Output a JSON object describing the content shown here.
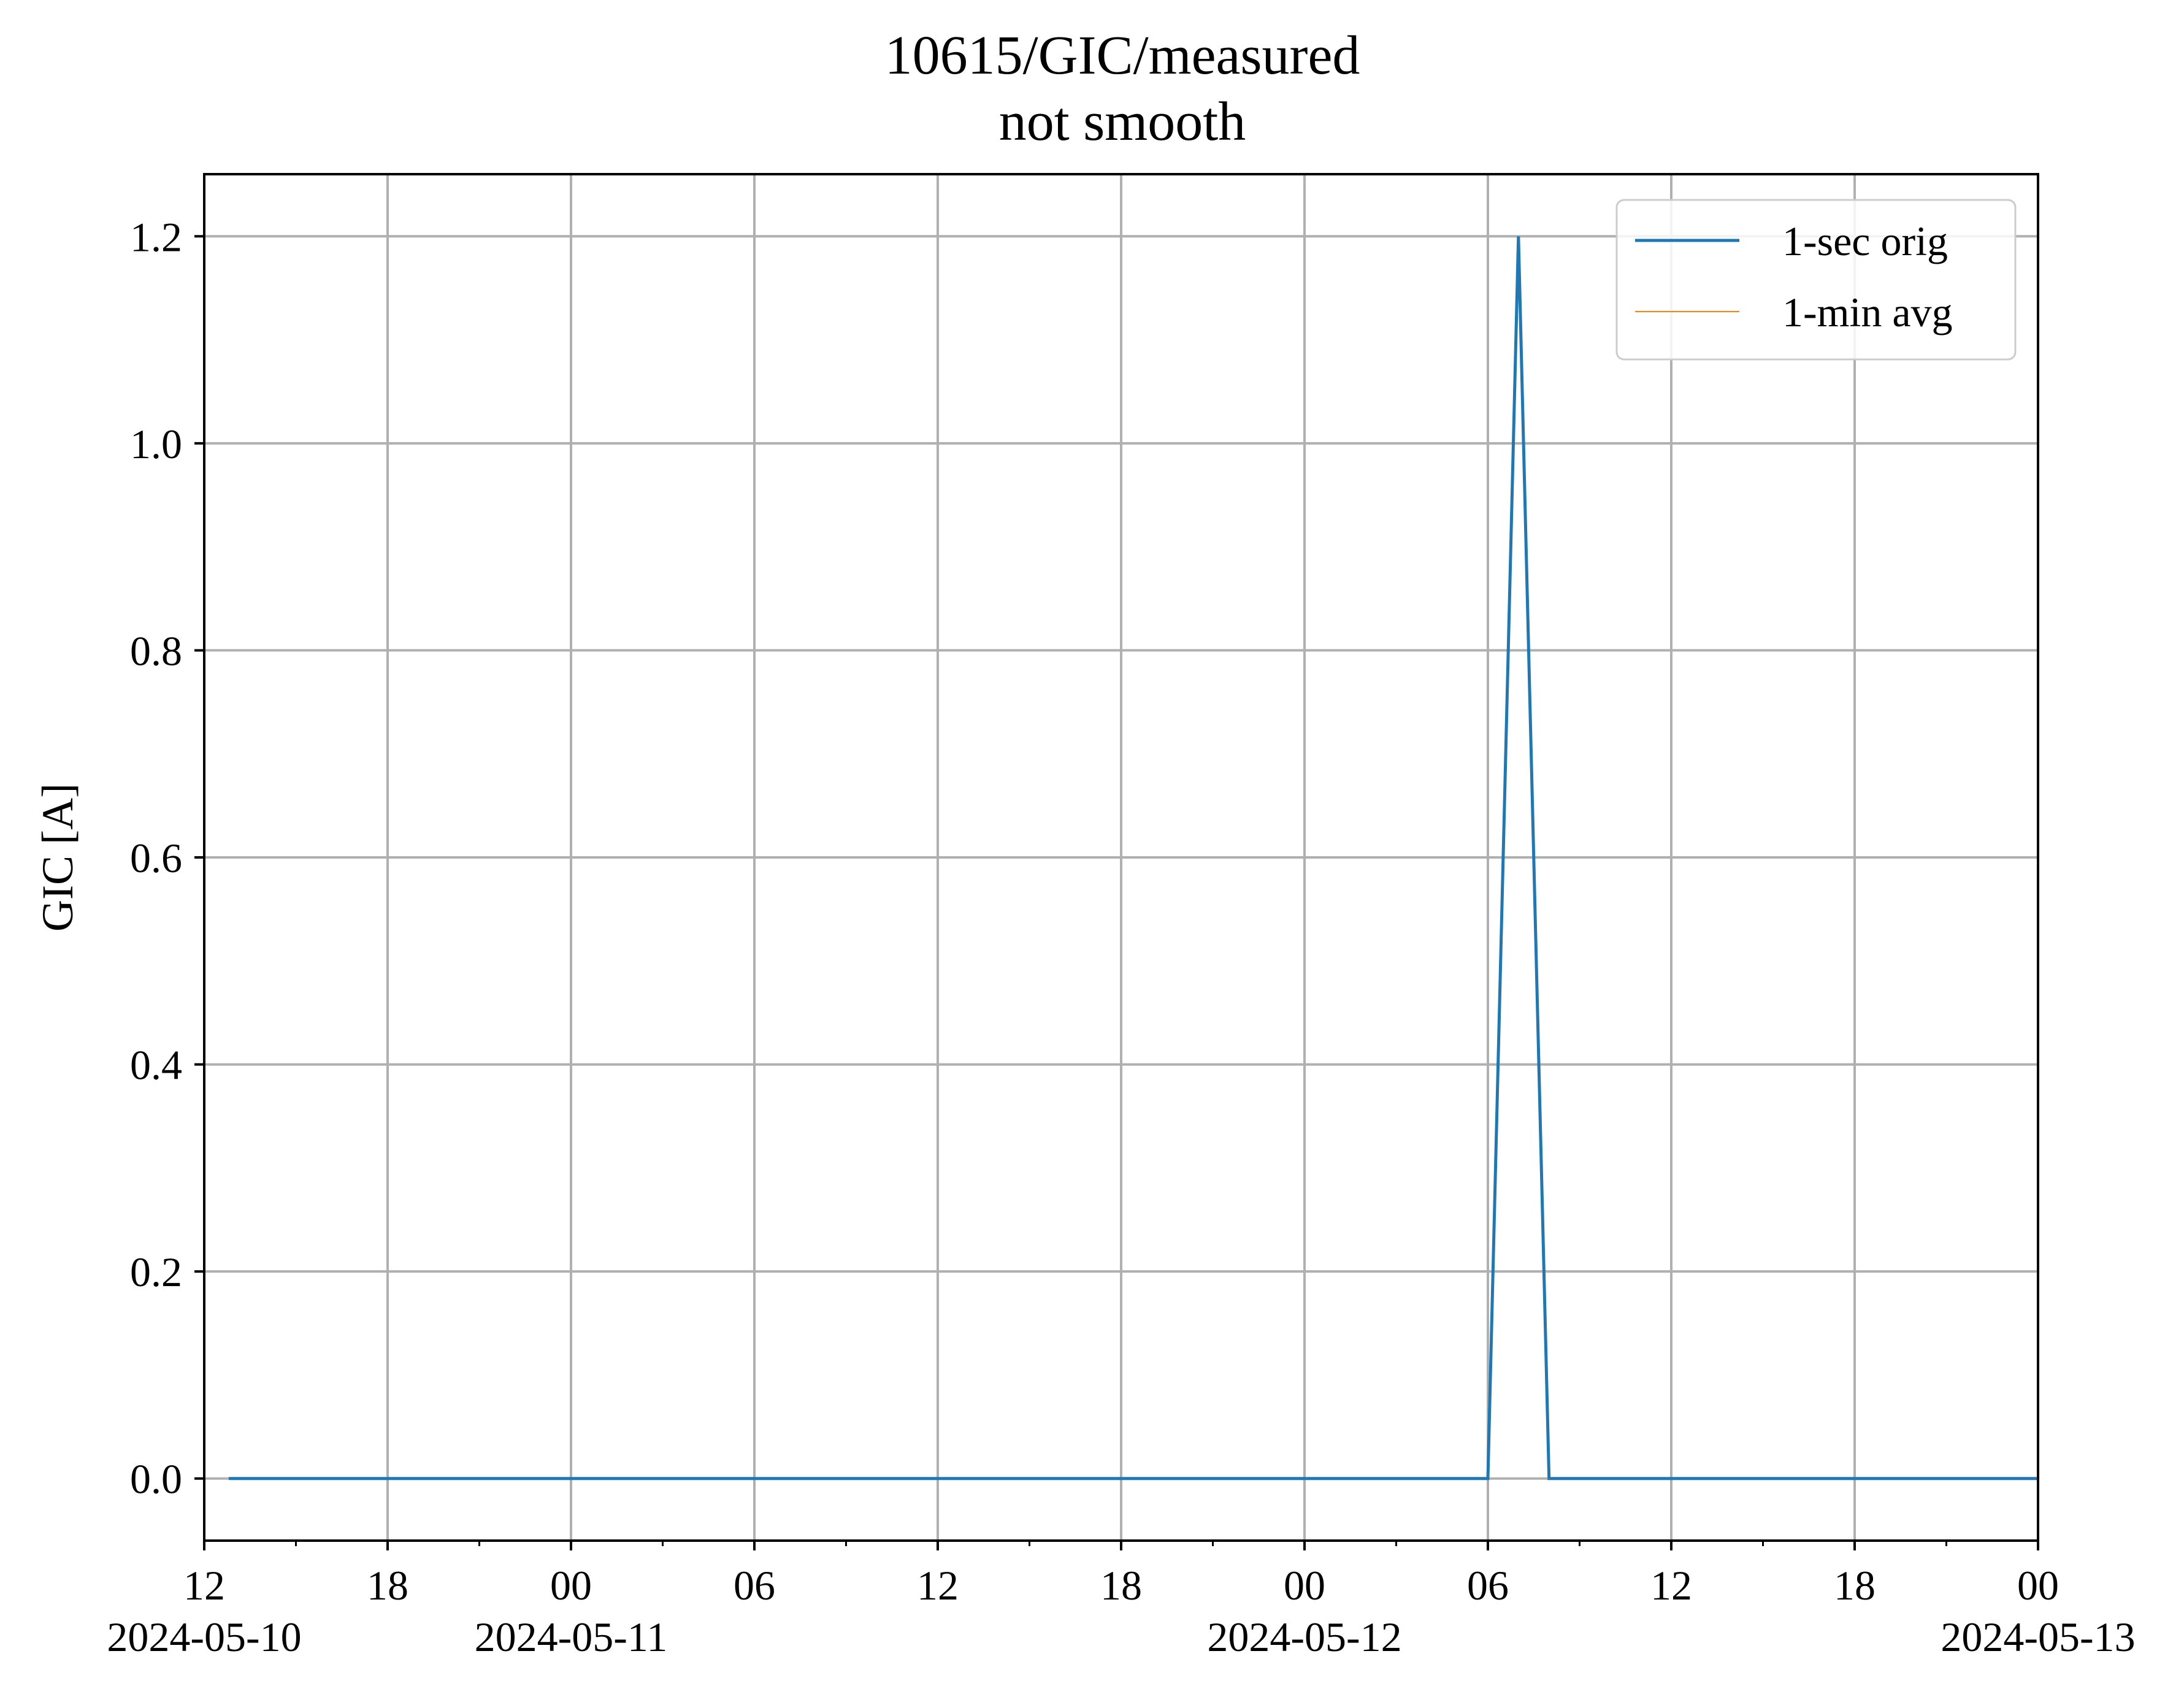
{
  "chart_data": {
    "type": "line",
    "title": "10615/GIC/measured",
    "subtitle": "not smooth",
    "xlabel": "",
    "ylabel": "GIC [A]",
    "x_range": [
      "2024-05-10 12:00",
      "2024-05-13 00:00"
    ],
    "ylim": [
      -0.06,
      1.26
    ],
    "y_ticks": [
      0.0,
      0.2,
      0.4,
      0.6,
      0.8,
      1.0,
      1.2
    ],
    "y_tick_labels": [
      "0.0",
      "0.2",
      "0.4",
      "0.6",
      "0.8",
      "1.0",
      "1.2"
    ],
    "x_ticks": [
      "2024-05-10 12:00",
      "2024-05-10 18:00",
      "2024-05-11 00:00",
      "2024-05-11 06:00",
      "2024-05-11 12:00",
      "2024-05-11 18:00",
      "2024-05-12 00:00",
      "2024-05-12 06:00",
      "2024-05-12 12:00",
      "2024-05-12 18:00",
      "2024-05-13 00:00"
    ],
    "x_tick_hour_labels": [
      "12",
      "18",
      "00",
      "06",
      "12",
      "18",
      "00",
      "06",
      "12",
      "18",
      "00"
    ],
    "x_tick_date_labels": [
      "2024-05-10",
      "",
      "2024-05-11",
      "",
      "",
      "",
      "2024-05-12",
      "",
      "",
      "",
      "2024-05-13"
    ],
    "grid": true,
    "legend_position": "top-right",
    "series": [
      {
        "name": "1-sec orig",
        "color": "#1f77b4",
        "x": [
          "2024-05-10 12:48",
          "2024-05-12 06:00",
          "2024-05-12 07:00",
          "2024-05-12 08:00",
          "2024-05-13 00:00"
        ],
        "y": [
          0.0,
          0.0,
          1.2,
          0.0,
          0.0
        ]
      },
      {
        "name": "1-min avg",
        "color": "#ff7f0e",
        "x": [],
        "y": []
      }
    ]
  }
}
